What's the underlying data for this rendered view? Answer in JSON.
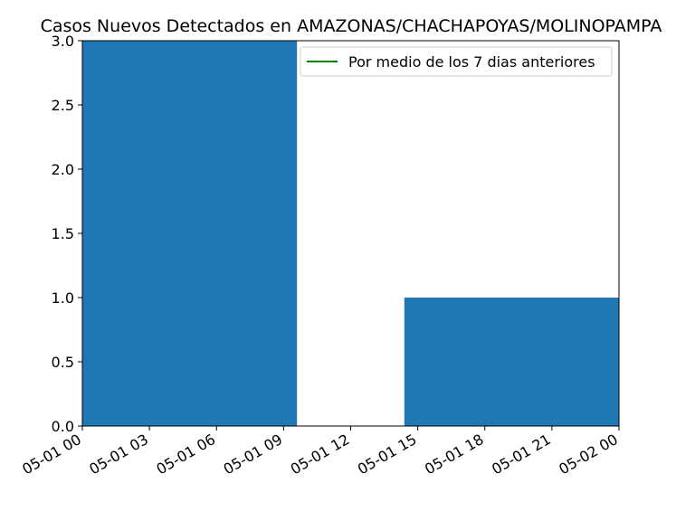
{
  "chart_data": {
    "type": "bar",
    "title": "Casos Nuevos Detectados en AMAZONAS/CHACHAPOYAS/MOLINOPAMPA",
    "xlabel": "",
    "ylabel": "",
    "x_range": [
      "05-01 00",
      "05-02 00"
    ],
    "x_ticks": [
      "05-01 00",
      "05-01 03",
      "05-01 06",
      "05-01 09",
      "05-01 12",
      "05-01 15",
      "05-01 18",
      "05-01 21",
      "05-02 00"
    ],
    "ylim": [
      0,
      3.0
    ],
    "y_ticks": [
      "0.0",
      "0.5",
      "1.0",
      "1.5",
      "2.0",
      "2.5",
      "3.0"
    ],
    "bars": [
      {
        "start": "05-01 00",
        "end": "05-01 09.6",
        "value": 3
      },
      {
        "start": "05-01 14.4",
        "end": "05-02 00",
        "value": 1
      }
    ],
    "bar_color": "#1f77b4",
    "series": [
      {
        "name": "Por medio de los 7 dias anteriores",
        "color": "#008000",
        "values": []
      }
    ],
    "legend": "top-right",
    "grid": false
  }
}
